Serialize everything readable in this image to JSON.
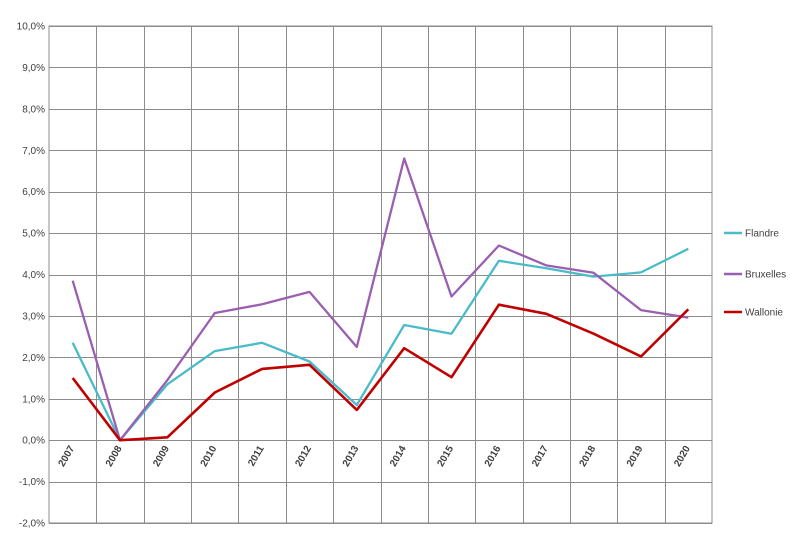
{
  "chart_data": {
    "type": "line",
    "title": "",
    "xlabel": "",
    "ylabel": "",
    "categories": [
      "2007",
      "2008",
      "2009",
      "2010",
      "2011",
      "2012",
      "2013",
      "2014",
      "2015",
      "2016",
      "2017",
      "2018",
      "2019",
      "2020"
    ],
    "y_ticks": [
      "10,0%",
      "9,0%",
      "8,0%",
      "7,0%",
      "6,0%",
      "5,0%",
      "4,0%",
      "3,0%",
      "2,0%",
      "1,0%",
      "0,0%",
      "-1,0%",
      "-2,0%"
    ],
    "ylim": [
      -2,
      10
    ],
    "grid": true,
    "legend_position": "right",
    "series": [
      {
        "name": "Flandre",
        "color": "#4bbbc9",
        "values": [
          2.35,
          0.0,
          1.35,
          2.15,
          2.35,
          1.9,
          0.85,
          2.78,
          2.57,
          4.33,
          4.15,
          3.95,
          4.05,
          4.62
        ]
      },
      {
        "name": "Bruxelles",
        "color": "#9b5fb0",
        "values": [
          3.85,
          0.0,
          1.45,
          3.07,
          3.28,
          3.58,
          2.25,
          6.8,
          3.47,
          4.7,
          4.22,
          4.04,
          3.14,
          2.96
        ]
      },
      {
        "name": "Wallonie",
        "color": "#c00000",
        "values": [
          1.5,
          0.0,
          0.07,
          1.15,
          1.72,
          1.82,
          0.73,
          2.22,
          1.52,
          3.27,
          3.05,
          2.57,
          2.02,
          3.16
        ]
      }
    ]
  }
}
